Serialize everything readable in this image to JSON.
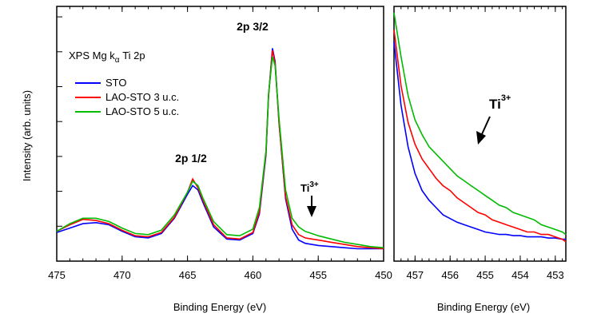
{
  "chart_data": [
    {
      "type": "line",
      "ylabel": "Intensity (arb. units)",
      "xlabel": "Binding Energy (eV)",
      "xlim": [
        475,
        450
      ],
      "ylim": [
        0,
        1.0
      ],
      "x_reversed": true,
      "grid": false,
      "x_ticks": [
        "475",
        "470",
        "465",
        "460",
        "455",
        "450"
      ],
      "annotations": {
        "title_prefix": "XPS Mg k",
        "title_sub": "α",
        "title_suffix": " Ti 2p",
        "peak_32": "2p 3/2",
        "peak_12": "2p 1/2",
        "ti_base": "Ti",
        "ti_sup": "3+"
      },
      "legend": {
        "placement": "top-left"
      },
      "series": [
        {
          "name": "STO",
          "color": "#0000ff",
          "x": [
            475,
            474,
            473,
            472,
            471,
            470,
            469,
            468,
            467,
            466,
            465,
            464.6,
            464.2,
            463.8,
            463,
            462,
            461,
            460,
            459.5,
            459,
            458.8,
            458.5,
            458.3,
            458,
            457.5,
            457,
            456.5,
            456,
            455.5,
            455,
            454,
            453,
            452,
            451,
            450
          ],
          "y": [
            0.095,
            0.115,
            0.135,
            0.14,
            0.13,
            0.1,
            0.075,
            0.07,
            0.09,
            0.16,
            0.27,
            0.31,
            0.29,
            0.23,
            0.12,
            0.065,
            0.06,
            0.09,
            0.18,
            0.45,
            0.72,
            0.94,
            0.88,
            0.6,
            0.25,
            0.11,
            0.06,
            0.045,
            0.04,
            0.035,
            0.03,
            0.025,
            0.02,
            0.02,
            0.02
          ]
        },
        {
          "name": "LAO-STO 3 u.c.",
          "color": "#ff0000",
          "x": [
            475,
            474,
            473,
            472,
            471,
            470,
            469,
            468,
            467,
            466,
            465,
            464.6,
            464.2,
            463.8,
            463,
            462,
            461,
            460,
            459.5,
            459,
            458.8,
            458.5,
            458.3,
            458,
            457.5,
            457,
            456.5,
            456,
            455.5,
            455,
            454,
            453,
            452,
            451,
            450
          ],
          "y": [
            0.1,
            0.13,
            0.155,
            0.15,
            0.135,
            0.105,
            0.08,
            0.075,
            0.095,
            0.165,
            0.28,
            0.34,
            0.3,
            0.24,
            0.13,
            0.07,
            0.065,
            0.095,
            0.19,
            0.46,
            0.72,
            0.93,
            0.87,
            0.6,
            0.26,
            0.13,
            0.085,
            0.07,
            0.065,
            0.06,
            0.05,
            0.04,
            0.03,
            0.025,
            0.02
          ]
        },
        {
          "name": "LAO-STO 5 u.c.",
          "color": "#00bb00",
          "x": [
            475,
            474,
            473,
            472,
            471,
            470,
            469,
            468,
            467,
            466,
            465,
            464.6,
            464.2,
            463.8,
            463,
            462,
            461,
            460,
            459.5,
            459,
            458.8,
            458.5,
            458.3,
            458,
            457.5,
            457,
            456.5,
            456,
            455.5,
            455,
            454,
            453,
            452,
            451,
            450
          ],
          "y": [
            0.1,
            0.135,
            0.16,
            0.16,
            0.145,
            0.115,
            0.09,
            0.085,
            0.105,
            0.175,
            0.28,
            0.33,
            0.31,
            0.25,
            0.145,
            0.085,
            0.08,
            0.11,
            0.21,
            0.47,
            0.73,
            0.9,
            0.86,
            0.62,
            0.29,
            0.16,
            0.12,
            0.1,
            0.09,
            0.08,
            0.065,
            0.05,
            0.04,
            0.03,
            0.025
          ]
        }
      ]
    },
    {
      "type": "line",
      "xlabel": "Binding Energy (eV)",
      "xlim": [
        457.6,
        452.7
      ],
      "ylim": [
        0,
        1.0
      ],
      "x_reversed": true,
      "grid": false,
      "x_ticks": [
        "457",
        "456",
        "455",
        "454",
        "453"
      ],
      "annotations": {
        "ti_base": "Ti",
        "ti_sup": "3+"
      },
      "series": [
        {
          "name": "STO",
          "color": "#0000ff",
          "x": [
            457.6,
            457.4,
            457.2,
            457,
            456.8,
            456.6,
            456.4,
            456.2,
            456,
            455.8,
            455.6,
            455.4,
            455.2,
            455,
            454.8,
            454.6,
            454.4,
            454.2,
            454,
            453.8,
            453.6,
            453.4,
            453.2,
            453,
            452.8,
            452.7
          ],
          "y": [
            0.88,
            0.62,
            0.45,
            0.34,
            0.27,
            0.23,
            0.2,
            0.17,
            0.155,
            0.14,
            0.13,
            0.12,
            0.11,
            0.1,
            0.095,
            0.09,
            0.09,
            0.085,
            0.085,
            0.08,
            0.08,
            0.08,
            0.075,
            0.075,
            0.07,
            0.07
          ]
        },
        {
          "name": "LAO-STO 3 u.c.",
          "color": "#ff0000",
          "x": [
            457.6,
            457.4,
            457.2,
            457,
            456.8,
            456.6,
            456.4,
            456.2,
            456,
            455.8,
            455.6,
            455.4,
            455.2,
            455,
            454.8,
            454.6,
            454.4,
            454.2,
            454,
            453.8,
            453.6,
            453.4,
            453.2,
            453,
            452.8,
            452.7
          ],
          "y": [
            0.93,
            0.7,
            0.55,
            0.46,
            0.4,
            0.36,
            0.32,
            0.29,
            0.27,
            0.24,
            0.22,
            0.2,
            0.18,
            0.17,
            0.15,
            0.14,
            0.13,
            0.12,
            0.11,
            0.1,
            0.1,
            0.09,
            0.09,
            0.08,
            0.07,
            0.06
          ]
        },
        {
          "name": "LAO-STO 5 u.c.",
          "color": "#00bb00",
          "x": [
            457.6,
            457.4,
            457.2,
            457,
            456.8,
            456.6,
            456.4,
            456.2,
            456,
            455.8,
            455.6,
            455.4,
            455.2,
            455,
            454.8,
            454.6,
            454.4,
            454.2,
            454,
            453.8,
            453.6,
            453.4,
            453.2,
            453,
            452.8,
            452.7
          ],
          "y": [
            1.0,
            0.82,
            0.66,
            0.56,
            0.5,
            0.45,
            0.42,
            0.39,
            0.36,
            0.33,
            0.31,
            0.29,
            0.27,
            0.25,
            0.23,
            0.21,
            0.2,
            0.18,
            0.17,
            0.16,
            0.15,
            0.13,
            0.12,
            0.11,
            0.1,
            0.09
          ]
        }
      ]
    }
  ]
}
